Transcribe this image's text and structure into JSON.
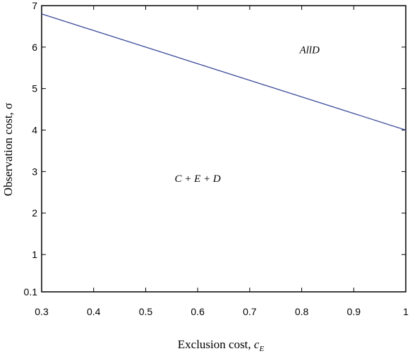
{
  "chart_data": {
    "type": "line",
    "xlabel": "Exclusion cost, ",
    "xlabel_symbol": "c",
    "xlabel_subscript": "E",
    "ylabel": "Observation cost, σ",
    "xlim": [
      0.3,
      1.0
    ],
    "ylim": [
      0.1,
      7
    ],
    "x_ticks": [
      0.3,
      0.4,
      0.5,
      0.6,
      0.7,
      0.8,
      0.9,
      1.0
    ],
    "x_tick_labels": [
      "0.3",
      "0.4",
      "0.5",
      "0.6",
      "0.7",
      "0.8",
      "0.9",
      "1"
    ],
    "y_ticks": [
      0.1,
      1,
      2,
      3,
      4,
      5,
      6,
      7
    ],
    "y_tick_labels": [
      "0.1",
      "1",
      "2",
      "3",
      "4",
      "5",
      "6",
      "7"
    ],
    "grid": false,
    "series": [
      {
        "color": "#3a4a9a",
        "x": [
          0.3,
          1.0
        ],
        "y": [
          6.8,
          4.0
        ]
      }
    ],
    "annotations": [
      {
        "text": "AllD",
        "x": 0.815,
        "y": 5.85
      },
      {
        "text": "C + E + D",
        "x": 0.6,
        "y": 2.75
      }
    ]
  }
}
